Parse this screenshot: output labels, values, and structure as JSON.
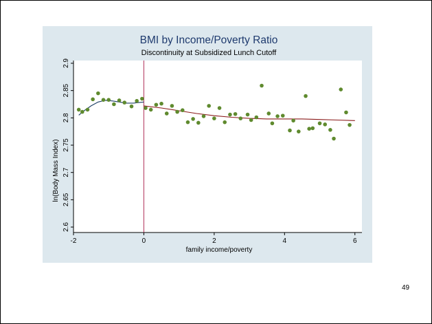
{
  "page": {
    "number": "49"
  },
  "colors": {
    "panel_background": "#dde8ee",
    "plot_background": "#ffffff",
    "markers": "#5f8a2e",
    "left_fit": "#1b3d63",
    "right_fit": "#8a1a1a",
    "cutoff_line": "#b0305a",
    "title": "#1e3a6e"
  },
  "chart_data": {
    "type": "scatter",
    "title": "BMI by Income/Poverty Ratio",
    "subtitle": "Discontinuity at Subsidized Lunch Cutoff",
    "xlabel": "family income/poverty",
    "ylabel": "ln(Body Mass Index)",
    "xlim": [
      -2,
      6.2
    ],
    "ylim": [
      2.59,
      2.905
    ],
    "xticks": [
      -2,
      0,
      2,
      4,
      6
    ],
    "xtick_labels": [
      "-2",
      "0",
      "2",
      "4",
      "6"
    ],
    "yticks": [
      2.6,
      2.65,
      2.7,
      2.75,
      2.8,
      2.85,
      2.9
    ],
    "ytick_labels": [
      "2.6",
      "2.65",
      "2.7",
      "2.75",
      "2.8",
      "2.85",
      "2.9"
    ],
    "grid": false,
    "legend": "none",
    "cutoff_x": 0,
    "points": [
      [
        -1.85,
        2.815
      ],
      [
        -1.75,
        2.811
      ],
      [
        -1.6,
        2.815
      ],
      [
        -1.45,
        2.834
      ],
      [
        -1.3,
        2.845
      ],
      [
        -1.15,
        2.833
      ],
      [
        -1.0,
        2.833
      ],
      [
        -0.85,
        2.825
      ],
      [
        -0.7,
        2.832
      ],
      [
        -0.55,
        2.828
      ],
      [
        -0.35,
        2.821
      ],
      [
        -0.2,
        2.831
      ],
      [
        -0.05,
        2.835
      ],
      [
        0.05,
        2.818
      ],
      [
        0.2,
        2.815
      ],
      [
        0.35,
        2.824
      ],
      [
        0.5,
        2.826
      ],
      [
        0.65,
        2.808
      ],
      [
        0.8,
        2.822
      ],
      [
        0.95,
        2.811
      ],
      [
        1.1,
        2.814
      ],
      [
        1.25,
        2.792
      ],
      [
        1.4,
        2.798
      ],
      [
        1.55,
        2.791
      ],
      [
        1.7,
        2.803
      ],
      [
        1.85,
        2.822
      ],
      [
        2.0,
        2.799
      ],
      [
        2.15,
        2.818
      ],
      [
        2.3,
        2.792
      ],
      [
        2.45,
        2.806
      ],
      [
        2.6,
        2.807
      ],
      [
        2.75,
        2.799
      ],
      [
        2.95,
        2.806
      ],
      [
        3.05,
        2.796
      ],
      [
        3.2,
        2.801
      ],
      [
        3.35,
        2.859
      ],
      [
        3.55,
        2.808
      ],
      [
        3.65,
        2.79
      ],
      [
        3.8,
        2.803
      ],
      [
        3.95,
        2.804
      ],
      [
        4.15,
        2.777
      ],
      [
        4.25,
        2.795
      ],
      [
        4.4,
        2.775
      ],
      [
        4.6,
        2.84
      ],
      [
        4.7,
        2.78
      ],
      [
        4.8,
        2.781
      ],
      [
        5.0,
        2.79
      ],
      [
        5.15,
        2.788
      ],
      [
        5.3,
        2.778
      ],
      [
        5.4,
        2.762
      ],
      [
        5.6,
        2.852
      ],
      [
        5.75,
        2.81
      ],
      [
        5.85,
        2.787
      ]
    ],
    "left_fit": [
      [
        -1.85,
        2.805
      ],
      [
        -1.7,
        2.813
      ],
      [
        -1.5,
        2.822
      ],
      [
        -1.3,
        2.829
      ],
      [
        -1.1,
        2.832
      ],
      [
        -0.9,
        2.831
      ],
      [
        -0.7,
        2.829
      ],
      [
        -0.5,
        2.827
      ],
      [
        -0.3,
        2.827
      ],
      [
        -0.15,
        2.828
      ],
      [
        0.0,
        2.829
      ]
    ],
    "right_fit": [
      [
        0.0,
        2.822
      ],
      [
        0.5,
        2.818
      ],
      [
        1.0,
        2.813
      ],
      [
        1.5,
        2.808
      ],
      [
        2.0,
        2.804
      ],
      [
        2.5,
        2.801
      ],
      [
        3.0,
        2.799
      ],
      [
        3.5,
        2.798
      ],
      [
        4.0,
        2.798
      ],
      [
        4.5,
        2.798
      ],
      [
        5.0,
        2.797
      ],
      [
        5.5,
        2.796
      ],
      [
        6.0,
        2.795
      ]
    ]
  }
}
